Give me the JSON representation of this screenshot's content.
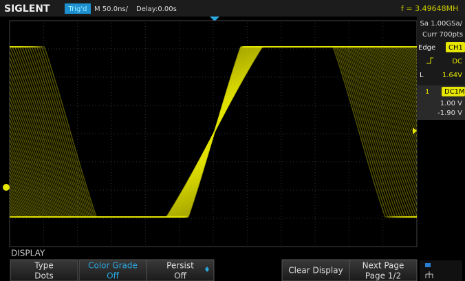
{
  "header": {
    "brand": "SIGLENT",
    "trigger": "Trig'd",
    "timebase": "M 50.0ns/",
    "delay": "Delay:0.00s",
    "frequency": "f = 3.49648MH"
  },
  "side_panel": {
    "sample_rate": "Sa 1.00GSa/",
    "memory": "Curr 700pts",
    "trigger_type": "Edge",
    "trigger_source": "CH1",
    "coupling": "DC",
    "level_label": "L",
    "level": "1.64V",
    "channel": "1",
    "channel_coupling": "DC1M",
    "scale": "1.00 V",
    "offset": "-1.90 V"
  },
  "menu": {
    "title": "DISPLAY",
    "buttons": [
      {
        "label": "Type",
        "value": "Dots"
      },
      {
        "label": "Color Grade",
        "value": "Off"
      },
      {
        "label": "Persist",
        "value": "Off"
      },
      {
        "label": "Clear Display"
      },
      {
        "label": "Next Page",
        "value": "Page 1/2"
      }
    ]
  }
}
